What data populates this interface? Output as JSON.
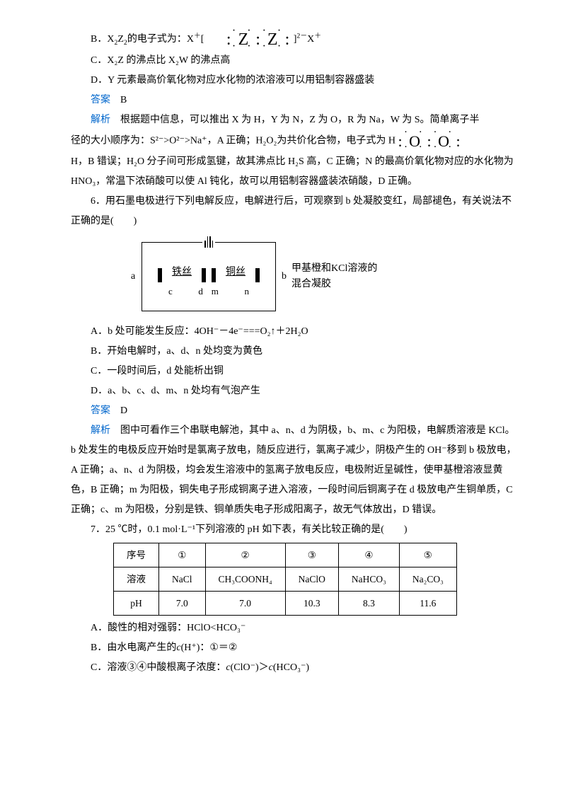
{
  "q5": {
    "optB_prefix": "B．X",
    "optB_sub1": "2",
    "optB_mid1": "Z",
    "optB_sub2": "2",
    "optB_text": "的电子式为：X",
    "optB_sup1": "＋",
    "optB_bracket_l": "[",
    "lewis_dots_top": "· ·   · ·",
    "lewis_mid": ": Z : Z :",
    "lewis_dots_bot": "· ·   · ·",
    "optB_bracket_r": "]",
    "optB_sup2": "2－",
    "optB_after": "X",
    "optB_sup3": "＋",
    "optC": "C．X₂Z 的沸点比 X₂W 的沸点高",
    "optD": "D．Y 元素最高价氧化物对应水化物的浓溶液可以用铝制容器盛装",
    "answer_label": "答案",
    "answer": "　B",
    "explain_label": "解析",
    "explain1": "　根据题中信息，可以推出 X 为 H，Y 为 N，Z 为 O，R 为 Na，W 为 S。简单离子半",
    "explain2_a": "径的大小顺序为：S²⁻>O²⁻>Na⁺，A 正确；H₂O₂为共价化合物，电子式为 H",
    "oo_dots_top": "· ·   · ·",
    "oo_mid": ": O : O :",
    "oo_dots_bot": "· ·   · ·",
    "explain3": "H，B 错误；H₂O 分子间可形成氢键，故其沸点比 H₂S 高，C 正确；N 的最高价氧化物对应的水化物为 HNO₃，常温下浓硝酸可以使 Al 钝化，故可以用铝制容器盛装浓硝酸，D 正确。"
  },
  "q6": {
    "stem": "6．用石墨电极进行下列电解反应，电解进行后，可观察到 b 处凝胶变红，局部褪色，有关说法不正确的是(　　)",
    "diagram": {
      "a_label": "a",
      "b_label": "b",
      "iron": "铁丝",
      "copper": "铜丝",
      "c": "c",
      "d": "d",
      "m": "m",
      "n": "n",
      "side1": "甲基橙和KCl溶液的",
      "side2": "混合凝胶"
    },
    "optA": "A．b 处可能发生反应：4OH⁻－4e⁻===O₂↑＋2H₂O",
    "optB": "B．开始电解时，a、d、n 处均变为黄色",
    "optC": "C．一段时间后，d 处能析出铜",
    "optD": "D．a、b、c、d、m、n 处均有气泡产生",
    "answer_label": "答案",
    "answer": "　D",
    "explain_label": "解析",
    "explain": "　图中可看作三个串联电解池，其中 a、n、d 为阴极，b、m、c 为阳极，电解质溶液是 KCl。b 处发生的电极反应开始时是氯离子放电，随反应进行，氯离子减少，阴极产生的 OH⁻移到 b 极放电，A 正确；a、n、d 为阴极，均会发生溶液中的氢离子放电反应，电极附近呈碱性，使甲基橙溶液显黄色，B 正确；m 为阳极，铜失电子形成铜离子进入溶液，一段时间后铜离子在 d 极放电产生铜单质，C 正确；c、m 为阳极，分别是铁、铜单质失电子形成阳离子，故无气体放出，D 错误。"
  },
  "q7": {
    "stem": "7．25 ℃时，0.1 mol·L⁻¹下列溶液的 pH 如下表，有关比较正确的是(　　)",
    "table": {
      "header": [
        "序号",
        "①",
        "②",
        "③",
        "④",
        "⑤"
      ],
      "row1": [
        "溶液",
        "NaCl",
        "CH₃COONH₄",
        "NaClO",
        "NaHCO₃",
        "Na₂CO₃"
      ],
      "row2": [
        "pH",
        "7.0",
        "7.0",
        "10.3",
        "8.3",
        "11.6"
      ]
    },
    "optA": "A．酸性的相对强弱：HClO<HCO₃⁻",
    "optB_pre": "B．由水电离产生的",
    "optB_c": "c",
    "optB_post": "(H⁺)：①＝②",
    "optC_pre": "C．溶液③④中酸根离子浓度：",
    "optC_c1": "c",
    "optC_mid": "(ClO⁻)＞",
    "optC_c2": "c",
    "optC_post": "(HCO₃⁻)"
  }
}
